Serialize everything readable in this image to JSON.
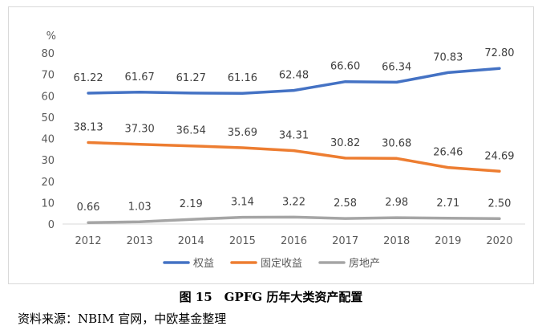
{
  "caption": "图 15　GPFG 历年大类资产配置",
  "source_note": "资料来源：NBIM 官网，中欧基金整理",
  "chart_data": {
    "type": "line",
    "unit": "%",
    "categories": [
      "2012",
      "2013",
      "2014",
      "2015",
      "2016",
      "2017",
      "2018",
      "2019",
      "2020"
    ],
    "ylim": [
      0,
      80
    ],
    "yticks": [
      0,
      10,
      20,
      30,
      40,
      50,
      60,
      70,
      80
    ],
    "grid": false,
    "legend_position": "bottom",
    "series": [
      {
        "name": "权益",
        "color": "#4472c4",
        "values": [
          61.22,
          61.67,
          61.27,
          61.16,
          62.48,
          66.6,
          66.34,
          70.83,
          72.8
        ],
        "labels": [
          "61.22",
          "61.67",
          "61.27",
          "61.16",
          "62.48",
          "66.60",
          "66.34",
          "70.83",
          "72.80"
        ]
      },
      {
        "name": "固定收益",
        "color": "#ed7d31",
        "values": [
          38.13,
          37.3,
          36.54,
          35.69,
          34.31,
          30.82,
          30.68,
          26.46,
          24.69
        ],
        "labels": [
          "38.13",
          "37.30",
          "36.54",
          "35.69",
          "34.31",
          "30.82",
          "30.68",
          "26.46",
          "24.69"
        ]
      },
      {
        "name": "房地产",
        "color": "#a5a5a5",
        "values": [
          0.66,
          1.03,
          2.19,
          3.14,
          3.22,
          2.58,
          2.98,
          2.71,
          2.5
        ],
        "labels": [
          "0.66",
          "1.03",
          "2.19",
          "3.14",
          "3.22",
          "2.58",
          "2.98",
          "2.71",
          "2.50"
        ]
      }
    ]
  }
}
